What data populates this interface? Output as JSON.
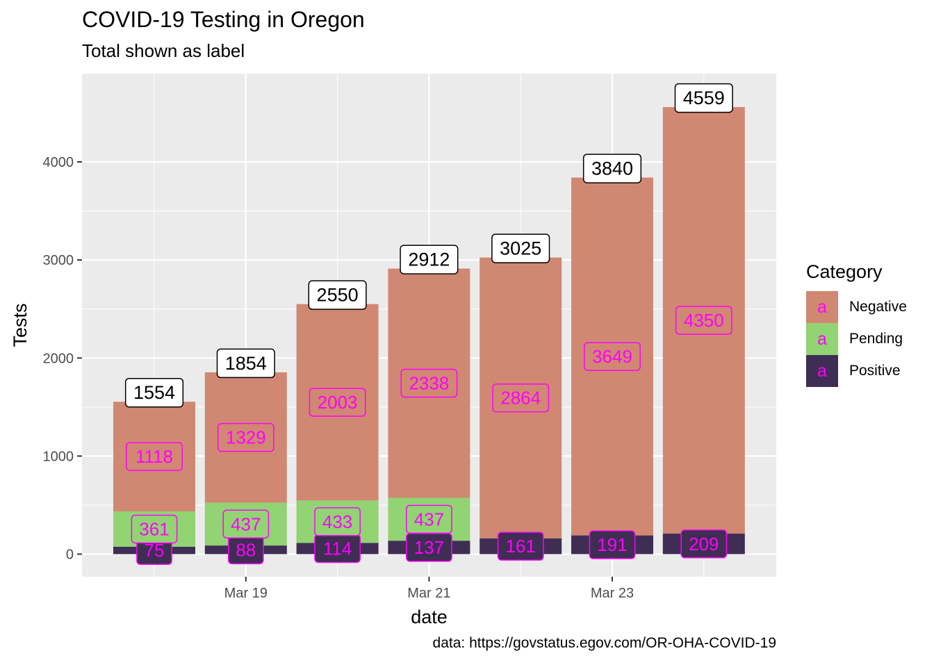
{
  "title": "COVID-19 Testing in Oregon",
  "subtitle": "Total shown as label",
  "caption": "data: https://govstatus.egov.com/OR-OHA-COVID-19",
  "legend": {
    "title": "Category",
    "key_glyph": "a",
    "items": [
      {
        "label": "Negative",
        "color": "#d08872"
      },
      {
        "label": "Pending",
        "color": "#92d373"
      },
      {
        "label": "Positive",
        "color": "#3f2d54"
      }
    ]
  },
  "chart_data": {
    "type": "bar",
    "stacked": true,
    "categories": [
      "2020-03-18",
      "2020-03-19",
      "2020-03-20",
      "2020-03-21",
      "2020-03-22",
      "2020-03-23",
      "2020-03-24"
    ],
    "series": [
      {
        "name": "Positive",
        "color": "#3f2d54",
        "values": [
          75,
          88,
          114,
          137,
          161,
          191,
          209
        ]
      },
      {
        "name": "Pending",
        "color": "#92d373",
        "values": [
          361,
          437,
          433,
          437,
          0,
          0,
          0
        ]
      },
      {
        "name": "Negative",
        "color": "#d08872",
        "values": [
          1118,
          1329,
          2003,
          2338,
          2864,
          3649,
          4350
        ]
      }
    ],
    "pending_shown": [
      true,
      true,
      true,
      true,
      false,
      false,
      false
    ],
    "totals": [
      1554,
      1854,
      2550,
      2912,
      3025,
      3840,
      4559
    ],
    "xlabel": "date",
    "ylabel": "Tests",
    "x_ticks": [
      "Mar 19",
      "Mar 21",
      "Mar 23"
    ],
    "x_tick_categories": [
      "2020-03-19",
      "2020-03-21",
      "2020-03-23"
    ],
    "y_ticks": [
      0,
      1000,
      2000,
      3000,
      4000
    ],
    "ylim": [
      -230,
      4900
    ],
    "grid": true,
    "background": "#ebebeb",
    "label_color": "#ff00ff",
    "legend_position": "right"
  }
}
